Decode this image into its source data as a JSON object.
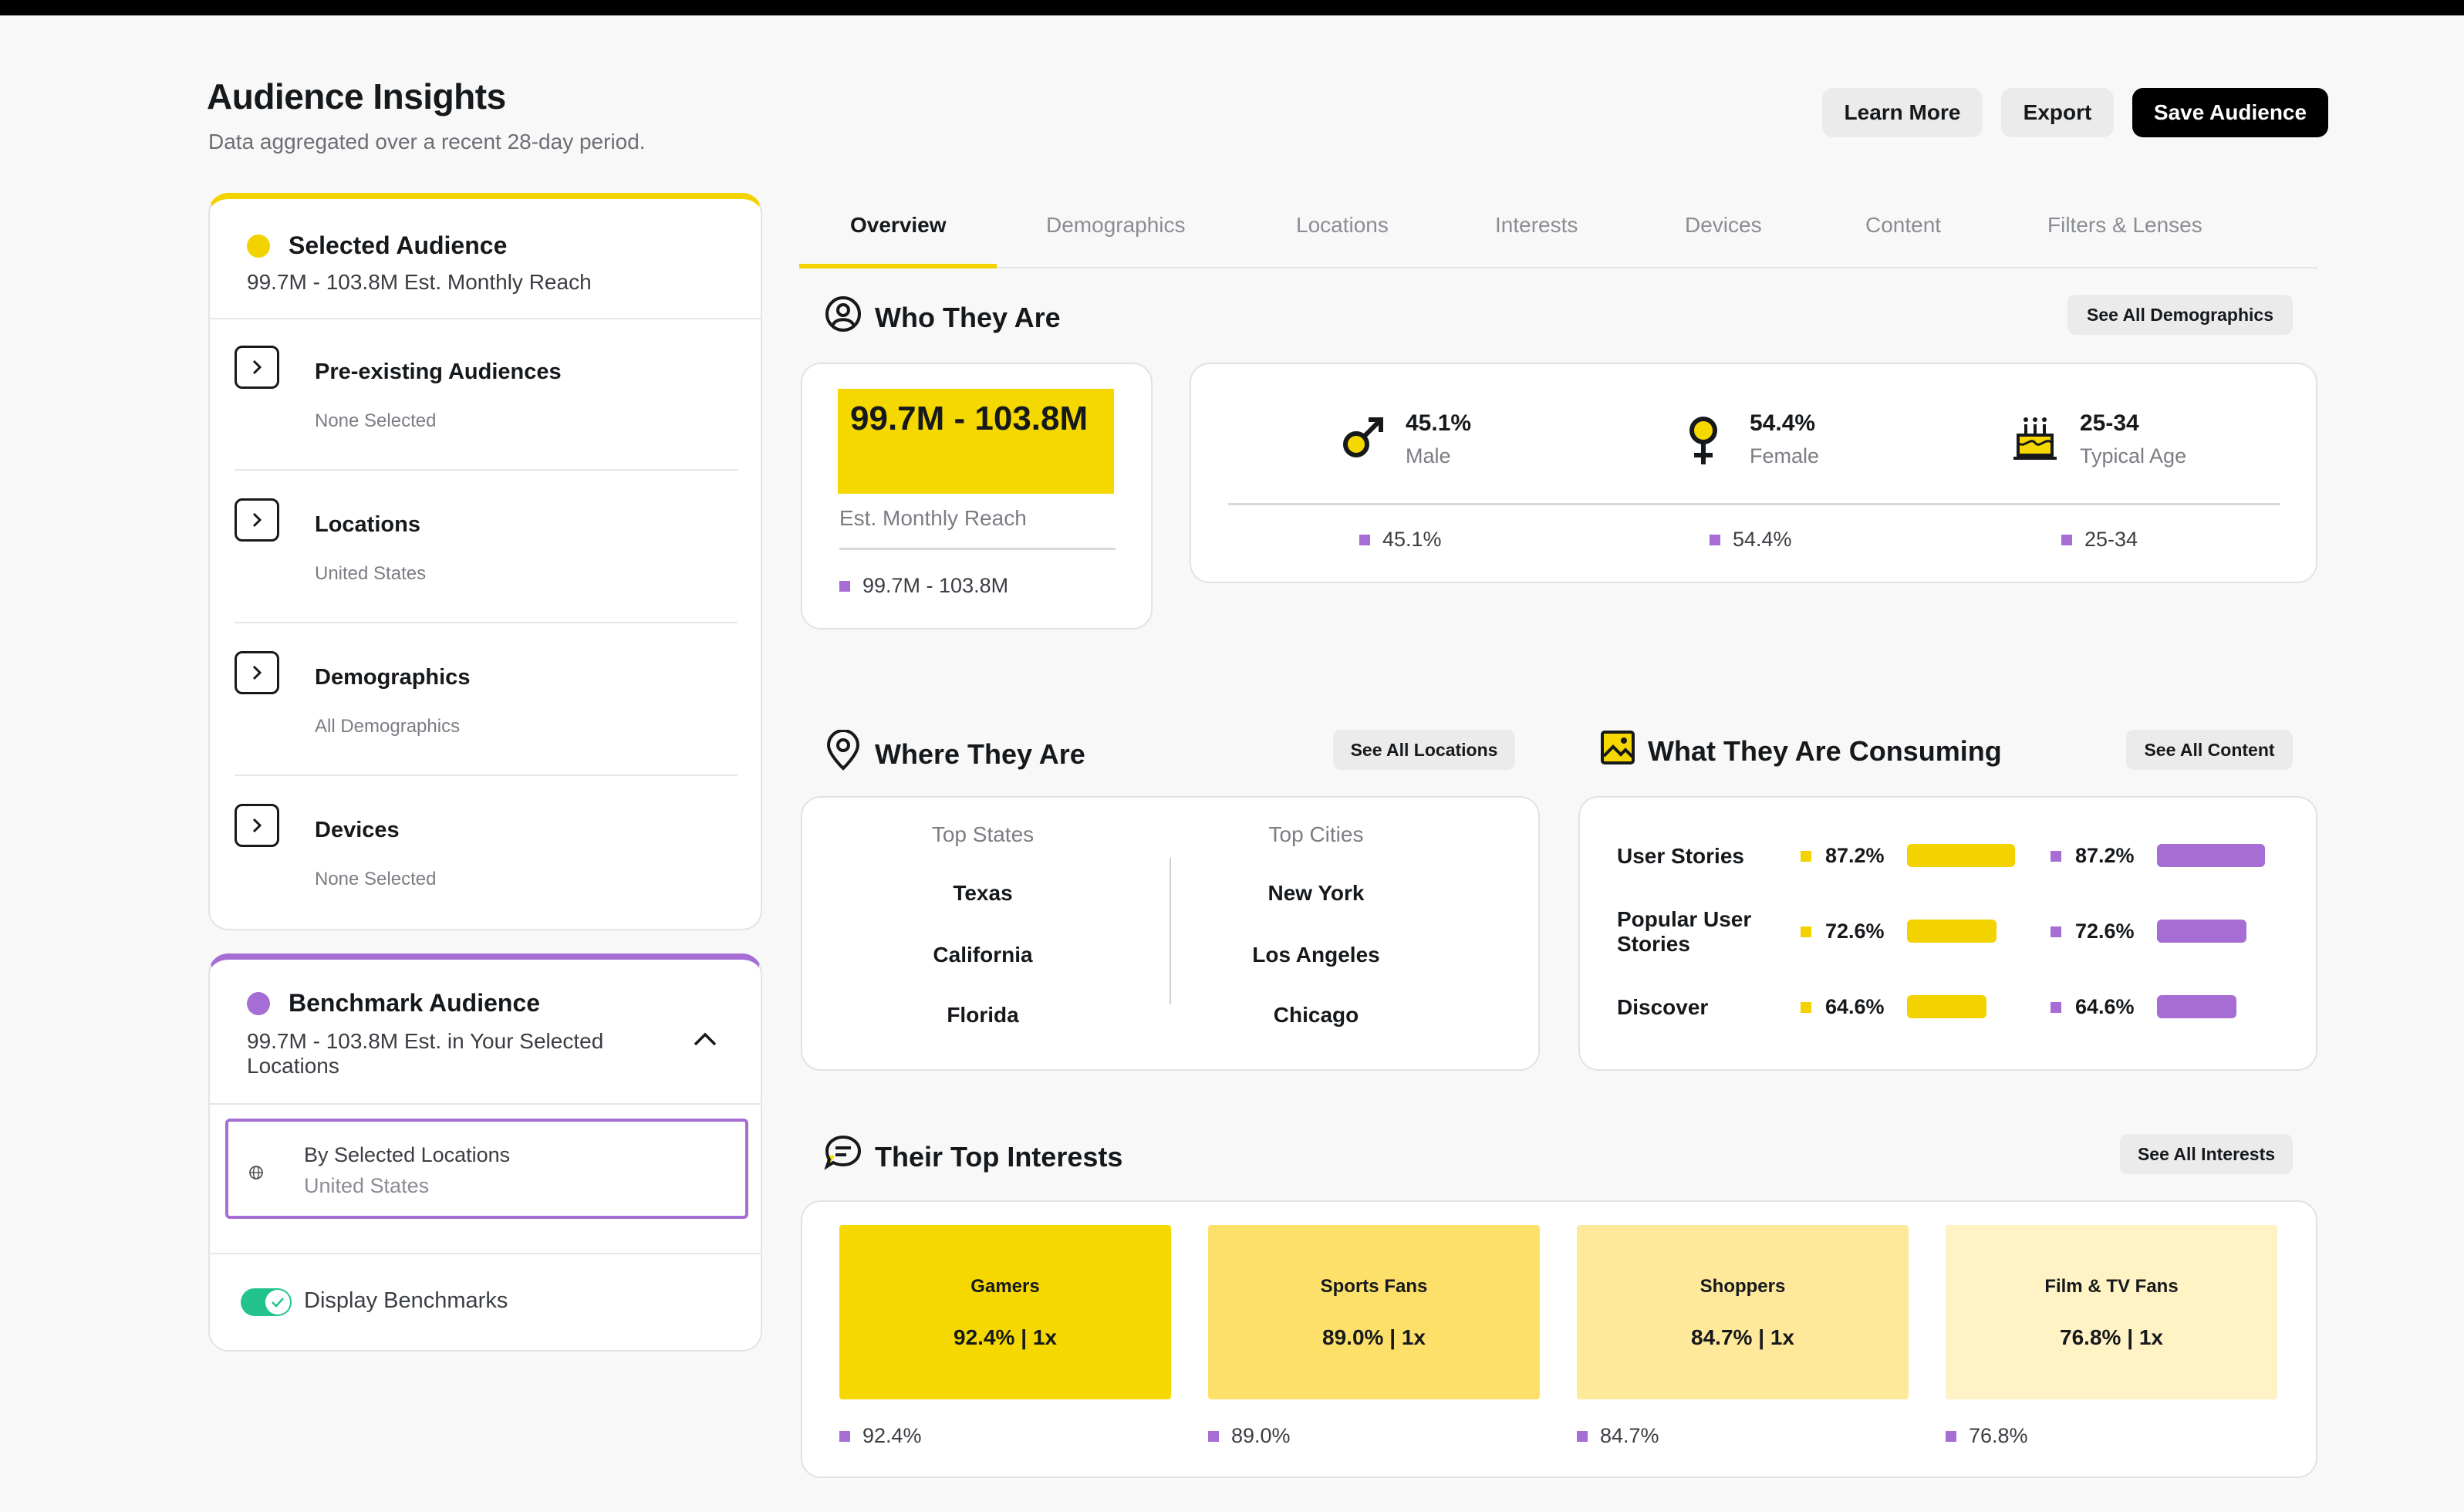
{
  "header": {
    "title": "Audience Insights",
    "subtitle": "Data aggregated over a recent 28-day period.",
    "learn_more": "Learn More",
    "export": "Export",
    "save_audience": "Save Audience"
  },
  "selected_audience": {
    "title": "Selected Audience",
    "reach": "99.7M - 103.8M Est. Monthly Reach",
    "filters": [
      {
        "title": "Pre-existing Audiences",
        "value": "None Selected"
      },
      {
        "title": "Locations",
        "value": "United States"
      },
      {
        "title": "Demographics",
        "value": "All Demographics"
      },
      {
        "title": "Devices",
        "value": "None Selected"
      }
    ]
  },
  "benchmark_audience": {
    "title": "Benchmark Audience",
    "reach": "99.7M - 103.8M Est. in Your Selected Locations",
    "selector_label": "By Selected Locations",
    "selector_value": "United States",
    "toggle_label": "Display Benchmarks",
    "toggle_on": true
  },
  "tabs": [
    "Overview",
    "Demographics",
    "Locations",
    "Interests",
    "Devices",
    "Content",
    "Filters & Lenses"
  ],
  "active_tab": "Overview",
  "who": {
    "title": "Who They Are",
    "see_all": "See All Demographics",
    "reach_value": "99.7M - 103.8M",
    "reach_label": "Est. Monthly Reach",
    "reach_benchmark": "99.7M - 103.8M",
    "demographics": [
      {
        "icon": "male-icon",
        "value": "45.1%",
        "label": "Male",
        "benchmark": "45.1%"
      },
      {
        "icon": "female-icon",
        "value": "54.4%",
        "label": "Female",
        "benchmark": "54.4%"
      },
      {
        "icon": "cake-icon",
        "value": "25-34",
        "label": "Typical Age",
        "benchmark": "25-34"
      }
    ]
  },
  "where": {
    "title": "Where They Are",
    "see_all": "See All Locations",
    "states_header": "Top States",
    "cities_header": "Top Cities",
    "states": [
      "Texas",
      "California",
      "Florida"
    ],
    "cities": [
      "New York",
      "Los Angeles",
      "Chicago"
    ]
  },
  "consuming": {
    "title": "What They Are Consuming",
    "see_all": "See All Content",
    "rows": [
      {
        "label": "User Stories",
        "selected": "87.2%",
        "benchmark": "87.2%",
        "value": 87.2
      },
      {
        "label": "Popular User Stories",
        "selected": "72.6%",
        "benchmark": "72.6%",
        "value": 72.6
      },
      {
        "label": "Discover",
        "selected": "64.6%",
        "benchmark": "64.6%",
        "value": 64.6
      }
    ]
  },
  "interests": {
    "title": "Their Top Interests",
    "see_all": "See All Interests",
    "items": [
      {
        "name": "Gamers",
        "stat": "92.4%  |  1x",
        "benchmark": "92.4%",
        "color": "#f5d800"
      },
      {
        "name": "Sports Fans",
        "stat": "89.0%  |  1x",
        "benchmark": "89.0%",
        "color": "#fde06a"
      },
      {
        "name": "Shoppers",
        "stat": "84.7%  |  1x",
        "benchmark": "84.7%",
        "color": "#fee89a"
      },
      {
        "name": "Film & TV Fans",
        "stat": "76.8%  |  1x",
        "benchmark": "76.8%",
        "color": "#fff2c4"
      }
    ]
  },
  "colors": {
    "selected": "#f2d300",
    "benchmark": "#a66dd4",
    "toggle": "#23c48b"
  }
}
